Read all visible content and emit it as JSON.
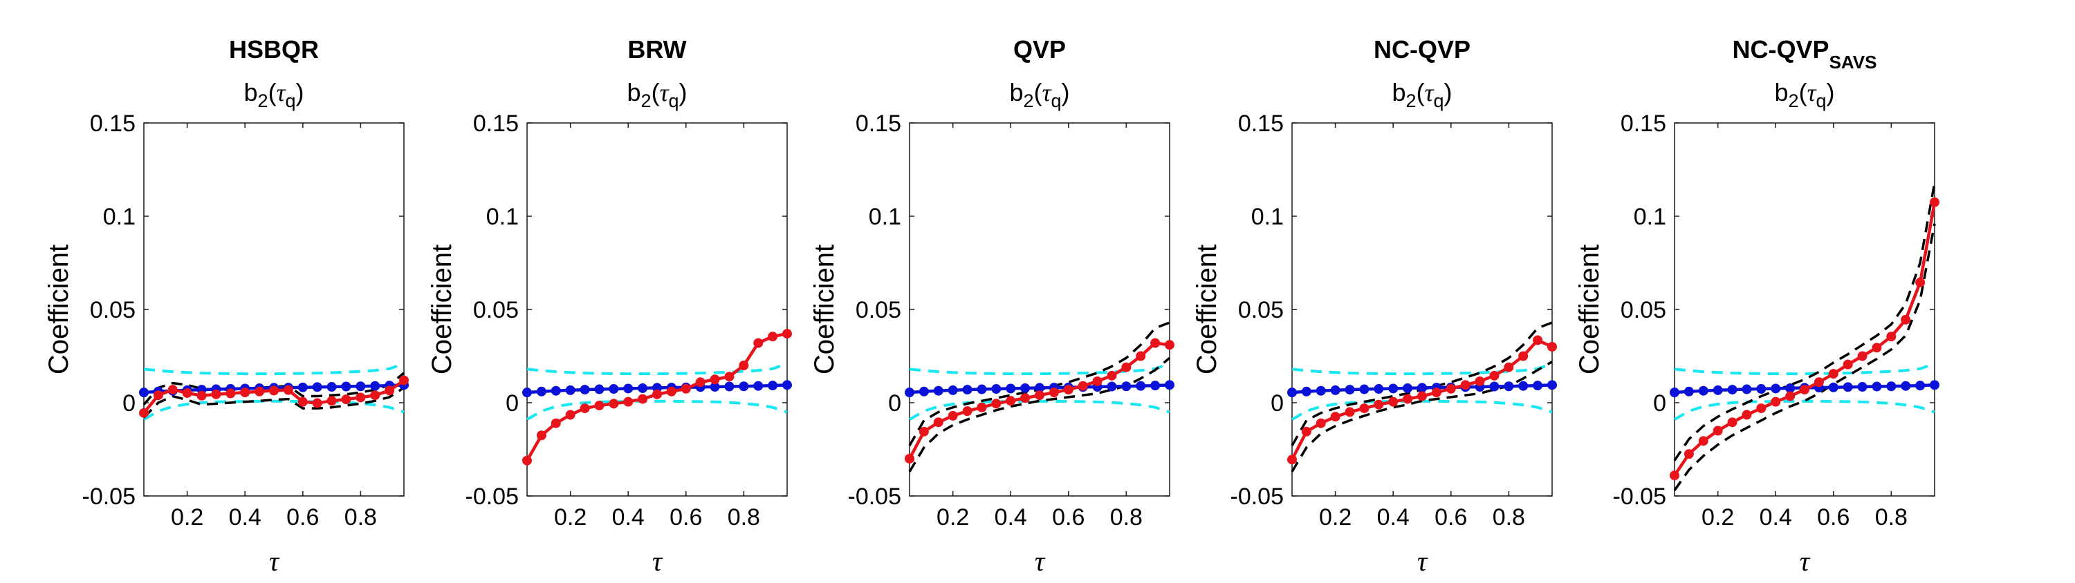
{
  "chart_data": [
    {
      "type": "line",
      "title": "HSBQR",
      "title_sub": "",
      "subtitle": "b2(τq)",
      "subtitle_parts": {
        "base": "b",
        "base_sub": "2",
        "open": "(",
        "sym": "τ",
        "sym_sub": "q",
        "close": ")"
      },
      "xlabel": "τ",
      "ylabel": "Coefficient",
      "xlim": [
        0.05,
        0.95
      ],
      "ylim": [
        -0.05,
        0.15
      ],
      "xticks": [
        0.2,
        0.4,
        0.6,
        0.8
      ],
      "xtick_labels": [
        "0.2",
        "0.4",
        "0.6",
        "0.8"
      ],
      "yticks": [
        -0.05,
        0,
        0.05,
        0.1,
        0.15
      ],
      "ytick_labels": [
        "-0.05",
        "0",
        "0.05",
        "0.1",
        "0.15"
      ],
      "x": [
        0.05,
        0.1,
        0.15,
        0.2,
        0.25,
        0.3,
        0.35,
        0.4,
        0.45,
        0.5,
        0.55,
        0.6,
        0.65,
        0.7,
        0.75,
        0.8,
        0.85,
        0.9,
        0.95
      ],
      "series": [
        {
          "style": "cyan-dashed",
          "values": [
            0.018,
            0.0172,
            0.0166,
            0.0162,
            0.0159,
            0.0157,
            0.0156,
            0.0155,
            0.0155,
            0.0155,
            0.0156,
            0.0157,
            0.0159,
            0.0161,
            0.0164,
            0.0168,
            0.0173,
            0.0182,
            0.021
          ]
        },
        {
          "style": "cyan-dashed",
          "values": [
            -0.009,
            -0.0045,
            -0.002,
            -0.0008,
            0.0,
            0.0004,
            0.0006,
            0.0007,
            0.0008,
            0.0008,
            0.0008,
            0.0007,
            0.0006,
            0.0004,
            0.0001,
            -0.0004,
            -0.0012,
            -0.0025,
            -0.005
          ]
        },
        {
          "style": "black-dashed",
          "values": [
            -0.001,
            0.008,
            0.0105,
            0.0095,
            0.0075,
            0.007,
            0.007,
            0.0075,
            0.008,
            0.0085,
            0.009,
            0.0035,
            0.0035,
            0.004,
            0.0045,
            0.0055,
            0.007,
            0.0095,
            0.016
          ]
        },
        {
          "style": "black-dashed",
          "values": [
            -0.008,
            0.0,
            0.0035,
            0.0015,
            -0.001,
            -0.0005,
            0.0,
            0.0005,
            0.001,
            0.0015,
            0.002,
            -0.003,
            -0.003,
            -0.0025,
            -0.0015,
            -0.0005,
            0.001,
            0.003,
            0.008
          ]
        },
        {
          "style": "blue-markers",
          "values": [
            0.0055,
            0.006,
            0.0064,
            0.0067,
            0.007,
            0.0072,
            0.0074,
            0.0076,
            0.0078,
            0.008,
            0.0081,
            0.0082,
            0.0084,
            0.0085,
            0.0087,
            0.0088,
            0.009,
            0.0092,
            0.0095
          ]
        },
        {
          "style": "red-markers",
          "values": [
            -0.0055,
            0.004,
            0.007,
            0.0052,
            0.0038,
            0.0045,
            0.005,
            0.0055,
            0.006,
            0.0065,
            0.0068,
            0.0005,
            -0.0002,
            0.001,
            0.0018,
            0.0028,
            0.004,
            0.0065,
            0.012
          ]
        }
      ]
    },
    {
      "type": "line",
      "title": "BRW",
      "title_sub": "",
      "subtitle": "b2(τq)",
      "subtitle_parts": {
        "base": "b",
        "base_sub": "2",
        "open": "(",
        "sym": "τ",
        "sym_sub": "q",
        "close": ")"
      },
      "xlabel": "τ",
      "ylabel": "Coefficient",
      "xlim": [
        0.05,
        0.95
      ],
      "ylim": [
        -0.05,
        0.15
      ],
      "xticks": [
        0.2,
        0.4,
        0.6,
        0.8
      ],
      "xtick_labels": [
        "0.2",
        "0.4",
        "0.6",
        "0.8"
      ],
      "yticks": [
        -0.05,
        0,
        0.05,
        0.1,
        0.15
      ],
      "ytick_labels": [
        "-0.05",
        "0",
        "0.05",
        "0.1",
        "0.15"
      ],
      "x": [
        0.05,
        0.1,
        0.15,
        0.2,
        0.25,
        0.3,
        0.35,
        0.4,
        0.45,
        0.5,
        0.55,
        0.6,
        0.65,
        0.7,
        0.75,
        0.8,
        0.85,
        0.9,
        0.95
      ],
      "series": [
        {
          "style": "cyan-dashed",
          "values": [
            0.018,
            0.0172,
            0.0166,
            0.0162,
            0.0159,
            0.0157,
            0.0156,
            0.0155,
            0.0155,
            0.0155,
            0.0156,
            0.0157,
            0.0159,
            0.0161,
            0.0164,
            0.0168,
            0.0173,
            0.0182,
            0.021
          ]
        },
        {
          "style": "cyan-dashed",
          "values": [
            -0.009,
            -0.0045,
            -0.002,
            -0.0008,
            0.0,
            0.0004,
            0.0006,
            0.0007,
            0.0008,
            0.0008,
            0.0008,
            0.0007,
            0.0006,
            0.0004,
            0.0001,
            -0.0004,
            -0.0012,
            -0.0025,
            -0.005
          ]
        },
        {
          "style": "blue-markers",
          "values": [
            0.0055,
            0.006,
            0.0064,
            0.0067,
            0.007,
            0.0072,
            0.0074,
            0.0076,
            0.0078,
            0.008,
            0.0081,
            0.0082,
            0.0084,
            0.0085,
            0.0087,
            0.0088,
            0.009,
            0.0092,
            0.0095
          ]
        },
        {
          "style": "red-markers",
          "values": [
            -0.031,
            -0.0175,
            -0.011,
            -0.0065,
            -0.003,
            -0.0015,
            -0.0005,
            0.0005,
            0.002,
            0.0045,
            0.006,
            0.0075,
            0.011,
            0.0125,
            0.014,
            0.02,
            0.032,
            0.0355,
            0.037
          ]
        }
      ]
    },
    {
      "type": "line",
      "title": "QVP",
      "title_sub": "",
      "subtitle": "b2(τq)",
      "subtitle_parts": {
        "base": "b",
        "base_sub": "2",
        "open": "(",
        "sym": "τ",
        "sym_sub": "q",
        "close": ")"
      },
      "xlabel": "τ",
      "ylabel": "Coefficient",
      "xlim": [
        0.05,
        0.95
      ],
      "ylim": [
        -0.05,
        0.15
      ],
      "xticks": [
        0.2,
        0.4,
        0.6,
        0.8
      ],
      "xtick_labels": [
        "0.2",
        "0.4",
        "0.6",
        "0.8"
      ],
      "yticks": [
        -0.05,
        0,
        0.05,
        0.1,
        0.15
      ],
      "ytick_labels": [
        "-0.05",
        "0",
        "0.05",
        "0.1",
        "0.15"
      ],
      "x": [
        0.05,
        0.1,
        0.15,
        0.2,
        0.25,
        0.3,
        0.35,
        0.4,
        0.45,
        0.5,
        0.55,
        0.6,
        0.65,
        0.7,
        0.75,
        0.8,
        0.85,
        0.9,
        0.95
      ],
      "series": [
        {
          "style": "cyan-dashed",
          "values": [
            0.018,
            0.0172,
            0.0166,
            0.0162,
            0.0159,
            0.0157,
            0.0156,
            0.0155,
            0.0155,
            0.0155,
            0.0156,
            0.0157,
            0.0159,
            0.0161,
            0.0164,
            0.0168,
            0.0173,
            0.0182,
            0.021
          ]
        },
        {
          "style": "cyan-dashed",
          "values": [
            -0.009,
            -0.0045,
            -0.002,
            -0.0008,
            0.0,
            0.0004,
            0.0006,
            0.0007,
            0.0008,
            0.0008,
            0.0008,
            0.0007,
            0.0006,
            0.0004,
            0.0001,
            -0.0004,
            -0.0012,
            -0.0025,
            -0.005
          ]
        },
        {
          "style": "black-dashed",
          "values": [
            -0.023,
            -0.0095,
            -0.005,
            -0.0025,
            -0.0005,
            0.001,
            0.0025,
            0.004,
            0.0055,
            0.007,
            0.009,
            0.011,
            0.0135,
            0.016,
            0.0195,
            0.024,
            0.031,
            0.04,
            0.043
          ]
        },
        {
          "style": "black-dashed",
          "values": [
            -0.037,
            -0.024,
            -0.0165,
            -0.012,
            -0.009,
            -0.0065,
            -0.004,
            -0.002,
            -0.0005,
            0.001,
            0.002,
            0.003,
            0.004,
            0.005,
            0.007,
            0.009,
            0.013,
            0.0175,
            0.024
          ]
        },
        {
          "style": "blue-markers",
          "values": [
            0.0055,
            0.006,
            0.0064,
            0.0067,
            0.007,
            0.0072,
            0.0074,
            0.0076,
            0.0078,
            0.008,
            0.0081,
            0.0082,
            0.0084,
            0.0085,
            0.0087,
            0.0088,
            0.009,
            0.0092,
            0.0095
          ]
        },
        {
          "style": "red-markers",
          "values": [
            -0.03,
            -0.0155,
            -0.0105,
            -0.007,
            -0.0045,
            -0.0025,
            -0.0005,
            0.001,
            0.0025,
            0.004,
            0.0055,
            0.007,
            0.009,
            0.0115,
            0.0145,
            0.019,
            0.025,
            0.032,
            0.031
          ]
        }
      ]
    },
    {
      "type": "line",
      "title": "NC-QVP",
      "title_sub": "",
      "subtitle": "b2(τq)",
      "subtitle_parts": {
        "base": "b",
        "base_sub": "2",
        "open": "(",
        "sym": "τ",
        "sym_sub": "q",
        "close": ")"
      },
      "xlabel": "τ",
      "ylabel": "Coefficient",
      "xlim": [
        0.05,
        0.95
      ],
      "ylim": [
        -0.05,
        0.15
      ],
      "xticks": [
        0.2,
        0.4,
        0.6,
        0.8
      ],
      "xtick_labels": [
        "0.2",
        "0.4",
        "0.6",
        "0.8"
      ],
      "yticks": [
        -0.05,
        0,
        0.05,
        0.1,
        0.15
      ],
      "ytick_labels": [
        "-0.05",
        "0",
        "0.05",
        "0.1",
        "0.15"
      ],
      "x": [
        0.05,
        0.1,
        0.15,
        0.2,
        0.25,
        0.3,
        0.35,
        0.4,
        0.45,
        0.5,
        0.55,
        0.6,
        0.65,
        0.7,
        0.75,
        0.8,
        0.85,
        0.9,
        0.95
      ],
      "series": [
        {
          "style": "cyan-dashed",
          "values": [
            0.018,
            0.0172,
            0.0166,
            0.0162,
            0.0159,
            0.0157,
            0.0156,
            0.0155,
            0.0155,
            0.0155,
            0.0156,
            0.0157,
            0.0159,
            0.0161,
            0.0164,
            0.0168,
            0.0173,
            0.0182,
            0.021
          ]
        },
        {
          "style": "cyan-dashed",
          "values": [
            -0.009,
            -0.0045,
            -0.002,
            -0.0008,
            0.0,
            0.0004,
            0.0006,
            0.0007,
            0.0008,
            0.0008,
            0.0008,
            0.0007,
            0.0006,
            0.0004,
            0.0001,
            -0.0004,
            -0.0012,
            -0.0025,
            -0.005
          ]
        },
        {
          "style": "black-dashed",
          "values": [
            -0.023,
            -0.0095,
            -0.0055,
            -0.003,
            -0.001,
            0.0005,
            0.002,
            0.0035,
            0.005,
            0.007,
            0.009,
            0.011,
            0.0135,
            0.016,
            0.0195,
            0.024,
            0.031,
            0.04,
            0.043
          ]
        },
        {
          "style": "black-dashed",
          "values": [
            -0.037,
            -0.024,
            -0.0165,
            -0.0125,
            -0.0095,
            -0.007,
            -0.0045,
            -0.0025,
            -0.001,
            0.001,
            0.002,
            0.003,
            0.004,
            0.005,
            0.007,
            0.009,
            0.013,
            0.0175,
            0.022
          ]
        },
        {
          "style": "blue-markers",
          "values": [
            0.0055,
            0.006,
            0.0064,
            0.0067,
            0.007,
            0.0072,
            0.0074,
            0.0076,
            0.0078,
            0.008,
            0.0081,
            0.0082,
            0.0084,
            0.0085,
            0.0087,
            0.0088,
            0.009,
            0.0092,
            0.0095
          ]
        },
        {
          "style": "red-markers",
          "values": [
            -0.0305,
            -0.0155,
            -0.011,
            -0.0075,
            -0.005,
            -0.003,
            -0.001,
            0.0005,
            0.002,
            0.0035,
            0.0055,
            0.0075,
            0.0095,
            0.0115,
            0.0145,
            0.019,
            0.025,
            0.0335,
            0.03
          ]
        }
      ]
    },
    {
      "type": "line",
      "title": "NC-QVP",
      "title_sub": "SAVS",
      "subtitle": "b2(τq)",
      "subtitle_parts": {
        "base": "b",
        "base_sub": "2",
        "open": "(",
        "sym": "τ",
        "sym_sub": "q",
        "close": ")"
      },
      "xlabel": "τ",
      "ylabel": "Coefficient",
      "xlim": [
        0.05,
        0.95
      ],
      "ylim": [
        -0.05,
        0.15
      ],
      "xticks": [
        0.2,
        0.4,
        0.6,
        0.8
      ],
      "xtick_labels": [
        "0.2",
        "0.4",
        "0.6",
        "0.8"
      ],
      "yticks": [
        -0.05,
        0,
        0.05,
        0.1,
        0.15
      ],
      "ytick_labels": [
        "-0.05",
        "0",
        "0.05",
        "0.1",
        "0.15"
      ],
      "x": [
        0.05,
        0.1,
        0.15,
        0.2,
        0.25,
        0.3,
        0.35,
        0.4,
        0.45,
        0.5,
        0.55,
        0.6,
        0.65,
        0.7,
        0.75,
        0.8,
        0.85,
        0.9,
        0.95
      ],
      "series": [
        {
          "style": "cyan-dashed",
          "values": [
            0.018,
            0.0172,
            0.0166,
            0.0162,
            0.0159,
            0.0157,
            0.0156,
            0.0155,
            0.0155,
            0.0155,
            0.0156,
            0.0157,
            0.0159,
            0.0161,
            0.0164,
            0.0168,
            0.0173,
            0.0182,
            0.021
          ]
        },
        {
          "style": "cyan-dashed",
          "values": [
            -0.009,
            -0.0045,
            -0.002,
            -0.0008,
            0.0,
            0.0004,
            0.0006,
            0.0007,
            0.0008,
            0.0008,
            0.0008,
            0.0007,
            0.0006,
            0.0004,
            0.0001,
            -0.0004,
            -0.0012,
            -0.0025,
            -0.005
          ]
        },
        {
          "style": "black-dashed",
          "values": [
            -0.031,
            -0.0195,
            -0.0125,
            -0.0075,
            -0.0035,
            0.0,
            0.0035,
            0.0065,
            0.0095,
            0.0125,
            0.0165,
            0.0215,
            0.026,
            0.031,
            0.036,
            0.042,
            0.053,
            0.075,
            0.118
          ]
        },
        {
          "style": "black-dashed",
          "values": [
            -0.047,
            -0.036,
            -0.0285,
            -0.0225,
            -0.0175,
            -0.0135,
            -0.0095,
            -0.0055,
            -0.002,
            0.001,
            0.005,
            0.01,
            0.0145,
            0.019,
            0.0235,
            0.0285,
            0.036,
            0.055,
            0.096
          ]
        },
        {
          "style": "blue-markers",
          "values": [
            0.0055,
            0.006,
            0.0064,
            0.0067,
            0.007,
            0.0072,
            0.0074,
            0.0076,
            0.0078,
            0.008,
            0.0081,
            0.0082,
            0.0084,
            0.0085,
            0.0087,
            0.0088,
            0.009,
            0.0092,
            0.0095
          ]
        },
        {
          "style": "red-markers",
          "values": [
            -0.039,
            -0.0275,
            -0.0205,
            -0.015,
            -0.0105,
            -0.0065,
            -0.003,
            0.0005,
            0.0035,
            0.007,
            0.011,
            0.0155,
            0.0205,
            0.025,
            0.0295,
            0.0355,
            0.0445,
            0.0645,
            0.1075
          ]
        }
      ]
    }
  ],
  "colors": {
    "red": "#e8141b",
    "blue": "#0a12d8",
    "black": "#000000",
    "cyan": "#18e6f0",
    "axis": "#262626",
    "tick_label": "#262626"
  }
}
